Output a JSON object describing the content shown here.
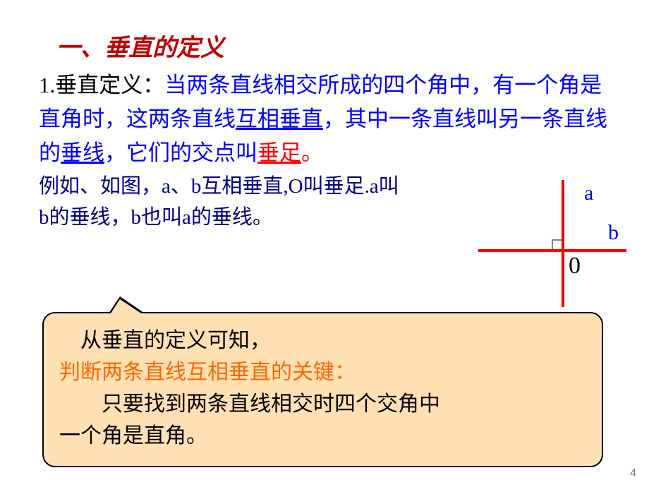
{
  "heading": "一、垂直的定义",
  "def": {
    "label": "1.垂直定义：",
    "p1": "当两条直线相交所成的四个角中，有一个角是直角时，这两条直线",
    "p2": "互相垂直",
    "p3": "，其中一条直线叫另一条直线的",
    "p4": "垂线",
    "p5": "，它们的交点叫",
    "p6": "垂足",
    "p7": "。"
  },
  "example": "例如、如图，a、b互相垂直,O叫垂足.a叫b的垂线，b也叫a的垂线。",
  "diagram": {
    "label_a": "a",
    "label_b": "b",
    "label_o": "0",
    "line_color": "#ff0000",
    "label_color": "#0000ff"
  },
  "callout": {
    "line1": "从垂直的定义可知，",
    "line2": "判断两条直线互相垂直的关键：",
    "line3a": "只要找到两条直线相交时四个交角中",
    "line3b": "一个角是直角。",
    "bg_color": "#ffe0b3",
    "border_color": "#000000"
  },
  "page_number": "4",
  "style": {
    "heading_color": "#c00000",
    "blue": "#0000ff",
    "red": "#ff0000",
    "navy": "#000080",
    "orange": "#ff6600",
    "base_fontsize": 31
  }
}
